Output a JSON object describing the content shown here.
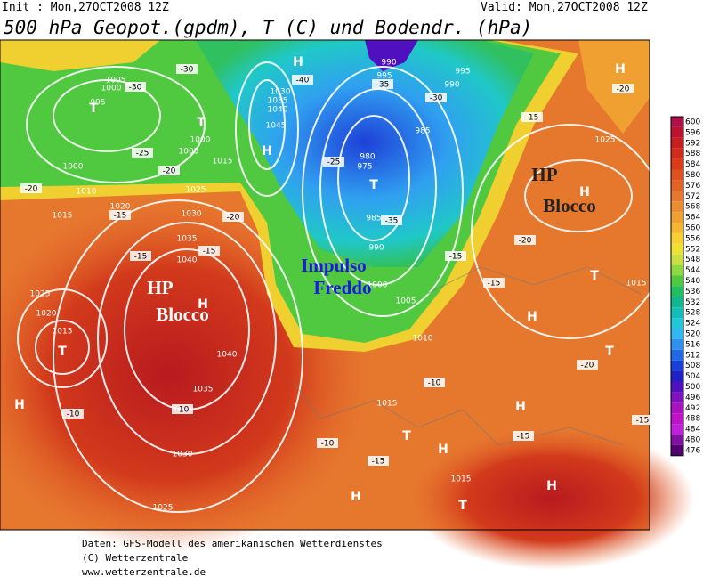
{
  "header": {
    "init": "Init : Mon,27OCT2008 12Z",
    "valid": "Valid: Mon,27OCT2008 12Z",
    "title": "500 hPa Geopot.(gpdm), T (C) und Bodendr. (hPa)"
  },
  "annotations": [
    {
      "line1": "HP",
      "line2": "Blocco"
    },
    {
      "line1": "HP",
      "line2": "Blocco"
    },
    {
      "line1": "Impulso",
      "line2": "Freddo"
    }
  ],
  "map": {
    "labels": [
      "1005",
      "1000",
      "995",
      "H",
      "990",
      "995",
      "995",
      "990",
      "1030",
      "1035",
      "1040",
      "1045",
      "H",
      "T",
      "T",
      "1000",
      "1005",
      "1015",
      "1000",
      "1010",
      "985",
      "980",
      "975",
      "T",
      "1025",
      "H",
      "1025",
      "1020",
      "1015",
      "1030",
      "985",
      "990",
      "1035",
      "1040",
      "H",
      "1025",
      "1020",
      "1015",
      "T",
      "1040",
      "1035",
      "H",
      "1030",
      "1025",
      "1000",
      "1005",
      "1010",
      "1015",
      "H",
      "T",
      "H",
      "1015",
      "H",
      "T",
      "H",
      "H",
      "T",
      "T",
      "H",
      "1015",
      "-30",
      "-30",
      "-40",
      "-35",
      "-30",
      "-25",
      "-20",
      "-20",
      "-15",
      "-15",
      "-15",
      "-20",
      "-10",
      "-10",
      "-10",
      "-15",
      "-15",
      "-15",
      "-20",
      "-10",
      "-20",
      "-15",
      "-20",
      "-25",
      "-35",
      "-15",
      "-15"
    ]
  },
  "colorbar": {
    "levels": [
      600,
      596,
      592,
      588,
      584,
      580,
      576,
      572,
      568,
      564,
      560,
      556,
      552,
      548,
      544,
      540,
      536,
      532,
      528,
      524,
      520,
      516,
      512,
      508,
      504,
      500,
      496,
      492,
      488,
      484,
      480,
      476
    ],
    "colors": [
      "#b01048",
      "#c01030",
      "#c81e1e",
      "#d42a1a",
      "#dc3a18",
      "#e05020",
      "#e46428",
      "#e87830",
      "#ec8c30",
      "#f0a030",
      "#f4b830",
      "#f8d030",
      "#f0e030",
      "#c8e040",
      "#90d840",
      "#50c840",
      "#20c060",
      "#10b890",
      "#10c0b8",
      "#20c8d8",
      "#30b8f0",
      "#3090f0",
      "#2068e8",
      "#1840d8",
      "#2020c8",
      "#5010c0",
      "#8010c0",
      "#a810c0",
      "#c010c8",
      "#c020d8",
      "#8010a0",
      "#500070"
    ]
  },
  "footer": [
    "Daten: GFS-Modell des amerikanischen Wetterdienstes",
    "(C) Wetterzentrale",
    "www.wetterzentrale.de"
  ]
}
